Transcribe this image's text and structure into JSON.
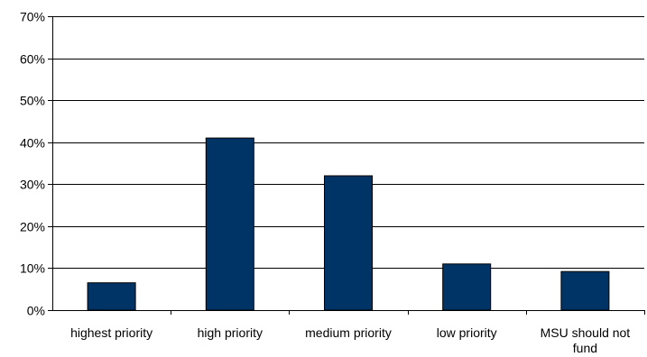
{
  "chart_data": {
    "type": "bar",
    "categories": [
      "highest priority",
      "high priority",
      "medium priority",
      "low priority",
      "MSU should not fund"
    ],
    "category_lines": [
      [
        "highest priority"
      ],
      [
        "high priority"
      ],
      [
        "medium priority"
      ],
      [
        "low priority"
      ],
      [
        "MSU should not",
        "fund"
      ]
    ],
    "values": [
      6.5,
      41,
      32,
      11,
      9.2
    ],
    "ylim": [
      0,
      70
    ],
    "yticks": [
      0,
      10,
      20,
      30,
      40,
      50,
      60,
      70
    ],
    "ytick_labels": [
      "0%",
      "10%",
      "20%",
      "30%",
      "40%",
      "50%",
      "60%",
      "70%"
    ],
    "grid": true,
    "title": "",
    "xlabel": "",
    "ylabel": "",
    "bar_color": "#003366"
  }
}
